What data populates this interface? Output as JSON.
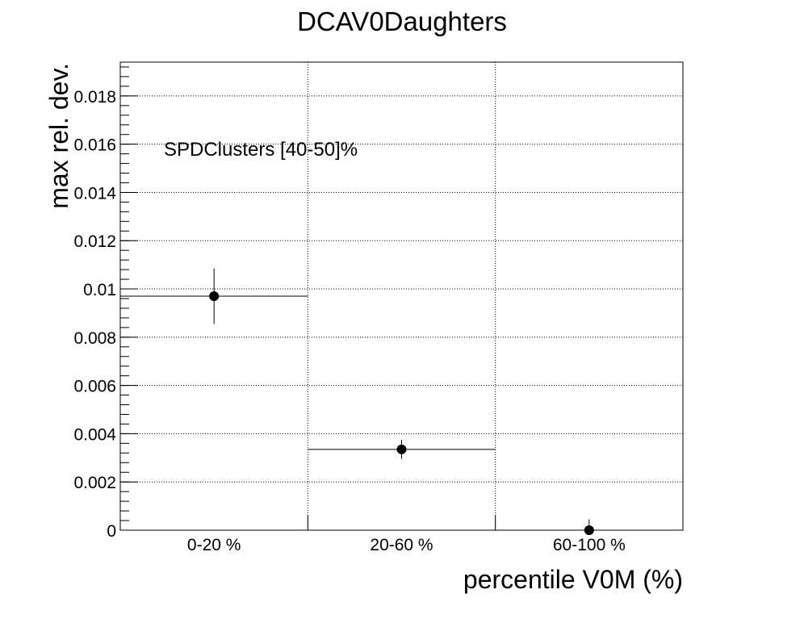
{
  "chart_data": {
    "type": "scatter",
    "title": "DCAV0Daughters",
    "xlabel": "percentile V0M (%)",
    "ylabel": "max rel. dev.",
    "annotation": "SPDClusters [40-50]%",
    "categories": [
      "0-20 %",
      "20-60 %",
      "60-100 %"
    ],
    "ylim": [
      0,
      0.0194
    ],
    "y_ticks": [
      0,
      0.002,
      0.004,
      0.006,
      0.008,
      0.01,
      0.012,
      0.014,
      0.016,
      0.018
    ],
    "y_tick_labels": [
      "0",
      "0.002",
      "0.004",
      "0.006",
      "0.008",
      "0.01",
      "0.012",
      "0.014",
      "0.016",
      "0.018"
    ],
    "grid": true,
    "series": [
      {
        "values": [
          0.0097,
          0.00335,
          0.0
        ],
        "y_err": [
          0.00115,
          0.0004,
          0.00045
        ]
      }
    ]
  }
}
